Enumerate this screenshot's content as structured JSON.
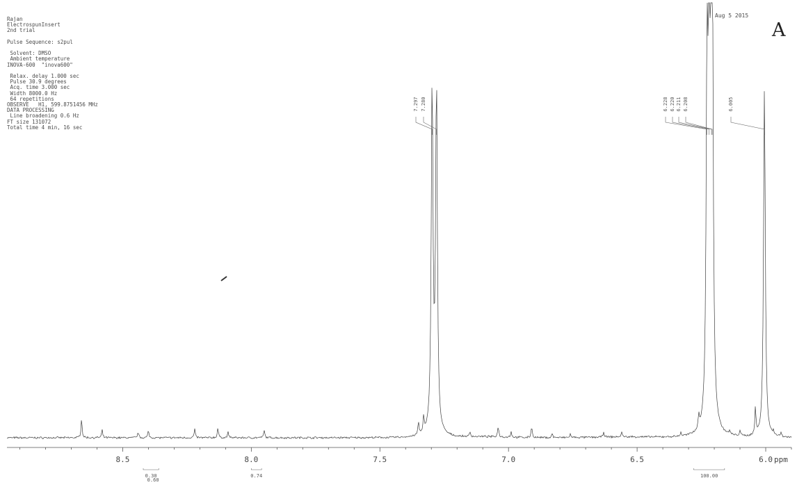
{
  "header": {
    "params": [
      "Rajan",
      "ElectrospunInsert",
      "2nd trial",
      "",
      "Pulse Sequence: s2pul",
      "",
      " Solvent: DMSO",
      " Ambient temperature",
      "INOVA-600  \"inova600\"",
      "",
      " Relax. delay 1.000 sec",
      " Pulse 30.9 degrees",
      " Acq. time 3.000 sec",
      " Width 8000.0 Hz",
      " 64 repetitions",
      "OBSERVE   H1, 599.8751456 MHz",
      "DATA PROCESSING",
      " Line broadening 0.6 Hz",
      "FT size 131072",
      "Total time 4 min, 16 sec"
    ],
    "date": "Aug  5 2015",
    "panel_label": "A"
  },
  "chart_data": {
    "type": "line",
    "title": "",
    "xlabel": "ppm",
    "ylabel": "",
    "x_reversed": true,
    "xlim": [
      8.95,
      5.9
    ],
    "x_ticks": [
      {
        "value": 8.5,
        "label": "8.5"
      },
      {
        "value": 8.0,
        "label": "8.0"
      },
      {
        "value": 7.5,
        "label": "7.5"
      },
      {
        "value": 7.0,
        "label": "7.0"
      },
      {
        "value": 6.5,
        "label": "6.5"
      },
      {
        "value": 6.0,
        "label": "6.0"
      }
    ],
    "grid": false,
    "peak_labels": [
      {
        "ppm": 7.297,
        "label": "7.297"
      },
      {
        "ppm": 7.28,
        "label": "7.280"
      },
      {
        "ppm": 6.228,
        "label": "6.228"
      },
      {
        "ppm": 6.22,
        "label": "6.220"
      },
      {
        "ppm": 6.211,
        "label": "6.211"
      },
      {
        "ppm": 6.208,
        "label": "6.208"
      },
      {
        "ppm": 6.005,
        "label": "6.005"
      }
    ],
    "integrals": [
      {
        "from": 8.42,
        "to": 8.36,
        "labels": [
          "0.30",
          "0.60"
        ]
      },
      {
        "from": 8.0,
        "to": 7.96,
        "labels": [
          "0.74"
        ]
      },
      {
        "from": 6.28,
        "to": 6.16,
        "labels": [
          "100.00"
        ]
      }
    ],
    "peaks": [
      {
        "ppm": 8.66,
        "height": 0.34
      },
      {
        "ppm": 8.58,
        "height": 0.13
      },
      {
        "ppm": 8.44,
        "height": 0.1
      },
      {
        "ppm": 8.4,
        "height": 0.12
      },
      {
        "ppm": 8.22,
        "height": 0.15
      },
      {
        "ppm": 8.13,
        "height": 0.17
      },
      {
        "ppm": 8.09,
        "height": 0.1
      },
      {
        "ppm": 7.95,
        "height": 0.13
      },
      {
        "ppm": 7.35,
        "height": 0.22
      },
      {
        "ppm": 7.33,
        "height": 0.27
      },
      {
        "ppm": 7.297,
        "height": 6.0
      },
      {
        "ppm": 7.28,
        "height": 6.0
      },
      {
        "ppm": 7.15,
        "height": 0.08
      },
      {
        "ppm": 7.04,
        "height": 0.19
      },
      {
        "ppm": 6.99,
        "height": 0.1
      },
      {
        "ppm": 6.91,
        "height": 0.2
      },
      {
        "ppm": 6.83,
        "height": 0.07
      },
      {
        "ppm": 6.76,
        "height": 0.06
      },
      {
        "ppm": 6.63,
        "height": 0.09
      },
      {
        "ppm": 6.56,
        "height": 0.08
      },
      {
        "ppm": 6.33,
        "height": 0.06
      },
      {
        "ppm": 6.26,
        "height": 0.22
      },
      {
        "ppm": 6.228,
        "height": 6.0
      },
      {
        "ppm": 6.22,
        "height": 6.0
      },
      {
        "ppm": 6.211,
        "height": 6.0
      },
      {
        "ppm": 6.208,
        "height": 6.0
      },
      {
        "ppm": 6.14,
        "height": 0.06
      },
      {
        "ppm": 6.1,
        "height": 0.1
      },
      {
        "ppm": 6.04,
        "height": 0.47
      },
      {
        "ppm": 6.005,
        "height": 6.0
      },
      {
        "ppm": 5.97,
        "height": 0.08
      },
      {
        "ppm": 5.94,
        "height": 0.07
      }
    ]
  }
}
